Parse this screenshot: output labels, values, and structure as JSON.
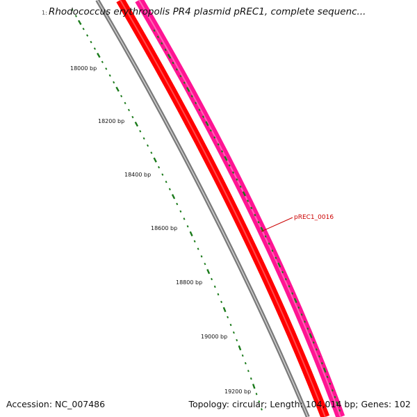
{
  "title": "Rhodococcus erythropolis PR4 plasmid pREC1, complete sequenc...",
  "title_prefix": "1:",
  "footer": {
    "accession_label": "Accession: ",
    "accession": "NC_007486",
    "topology_label": "Topology: ",
    "topology": "circular",
    "length_label": "; Length: ",
    "length": "104,014 bp",
    "genes_label": "; Genes: ",
    "genes": "102"
  },
  "ticks": [
    {
      "label": "18000 bp"
    },
    {
      "label": "18200 bp"
    },
    {
      "label": "18400 bp"
    },
    {
      "label": "18600 bp"
    },
    {
      "label": "18800 bp"
    },
    {
      "label": "19000 bp"
    },
    {
      "label": "19200 bp"
    }
  ],
  "gene_label": "pREC1_0016",
  "colors": {
    "backbone": "#7a7a7a",
    "cds_reverse": "#ff0000",
    "cds_forward": "#ff1493",
    "tick": "#1a7a1a",
    "gene_label": "#cc0000"
  }
}
